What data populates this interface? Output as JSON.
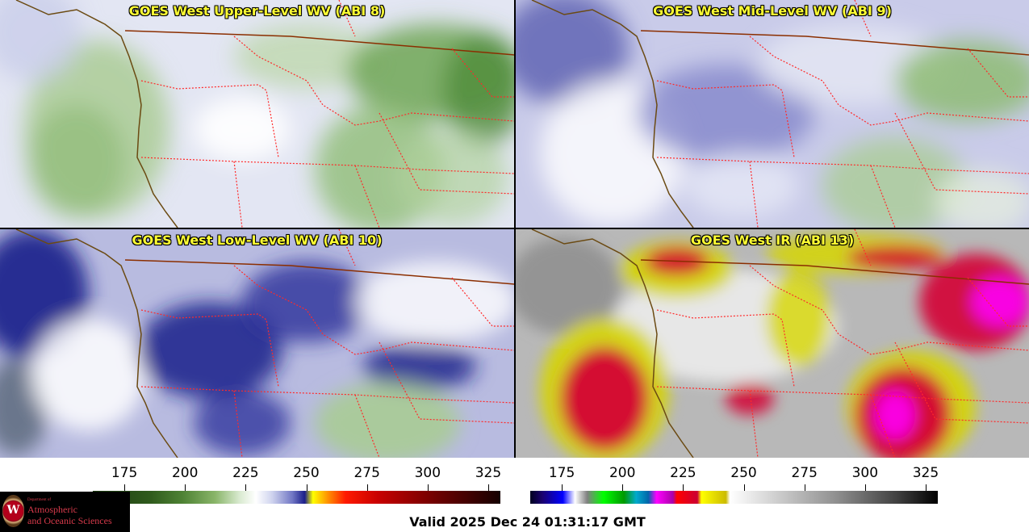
{
  "panels": [
    {
      "title": "GOES West Upper-Level WV (ABI 8)",
      "product": "water-vapor-upper"
    },
    {
      "title": "GOES West Mid-Level WV (ABI 9)",
      "product": "water-vapor-mid"
    },
    {
      "title": "GOES West Low-Level WV (ABI 10)",
      "product": "water-vapor-low"
    },
    {
      "title": "GOES West IR (ABI 13)",
      "product": "infrared"
    }
  ],
  "colorbars": {
    "wv": {
      "ticks": [
        "175",
        "200",
        "225",
        "250",
        "275",
        "300",
        "325"
      ],
      "range": [
        162,
        330
      ]
    },
    "ir": {
      "ticks": [
        "175",
        "200",
        "225",
        "250",
        "275",
        "300",
        "325"
      ],
      "range": [
        162,
        330
      ]
    }
  },
  "logo": {
    "department": "Department of",
    "line1": "Atmospheric",
    "line2": "and Oceanic Sciences",
    "seal_letter": "W"
  },
  "valid_time": "Valid 2025 Dec 24 01:31:17 GMT",
  "colors": {
    "title_text": "#ffff33",
    "state_borders": "#ff2a2a",
    "coastline": "#6b4a12",
    "country_border": "#8b2e00"
  }
}
